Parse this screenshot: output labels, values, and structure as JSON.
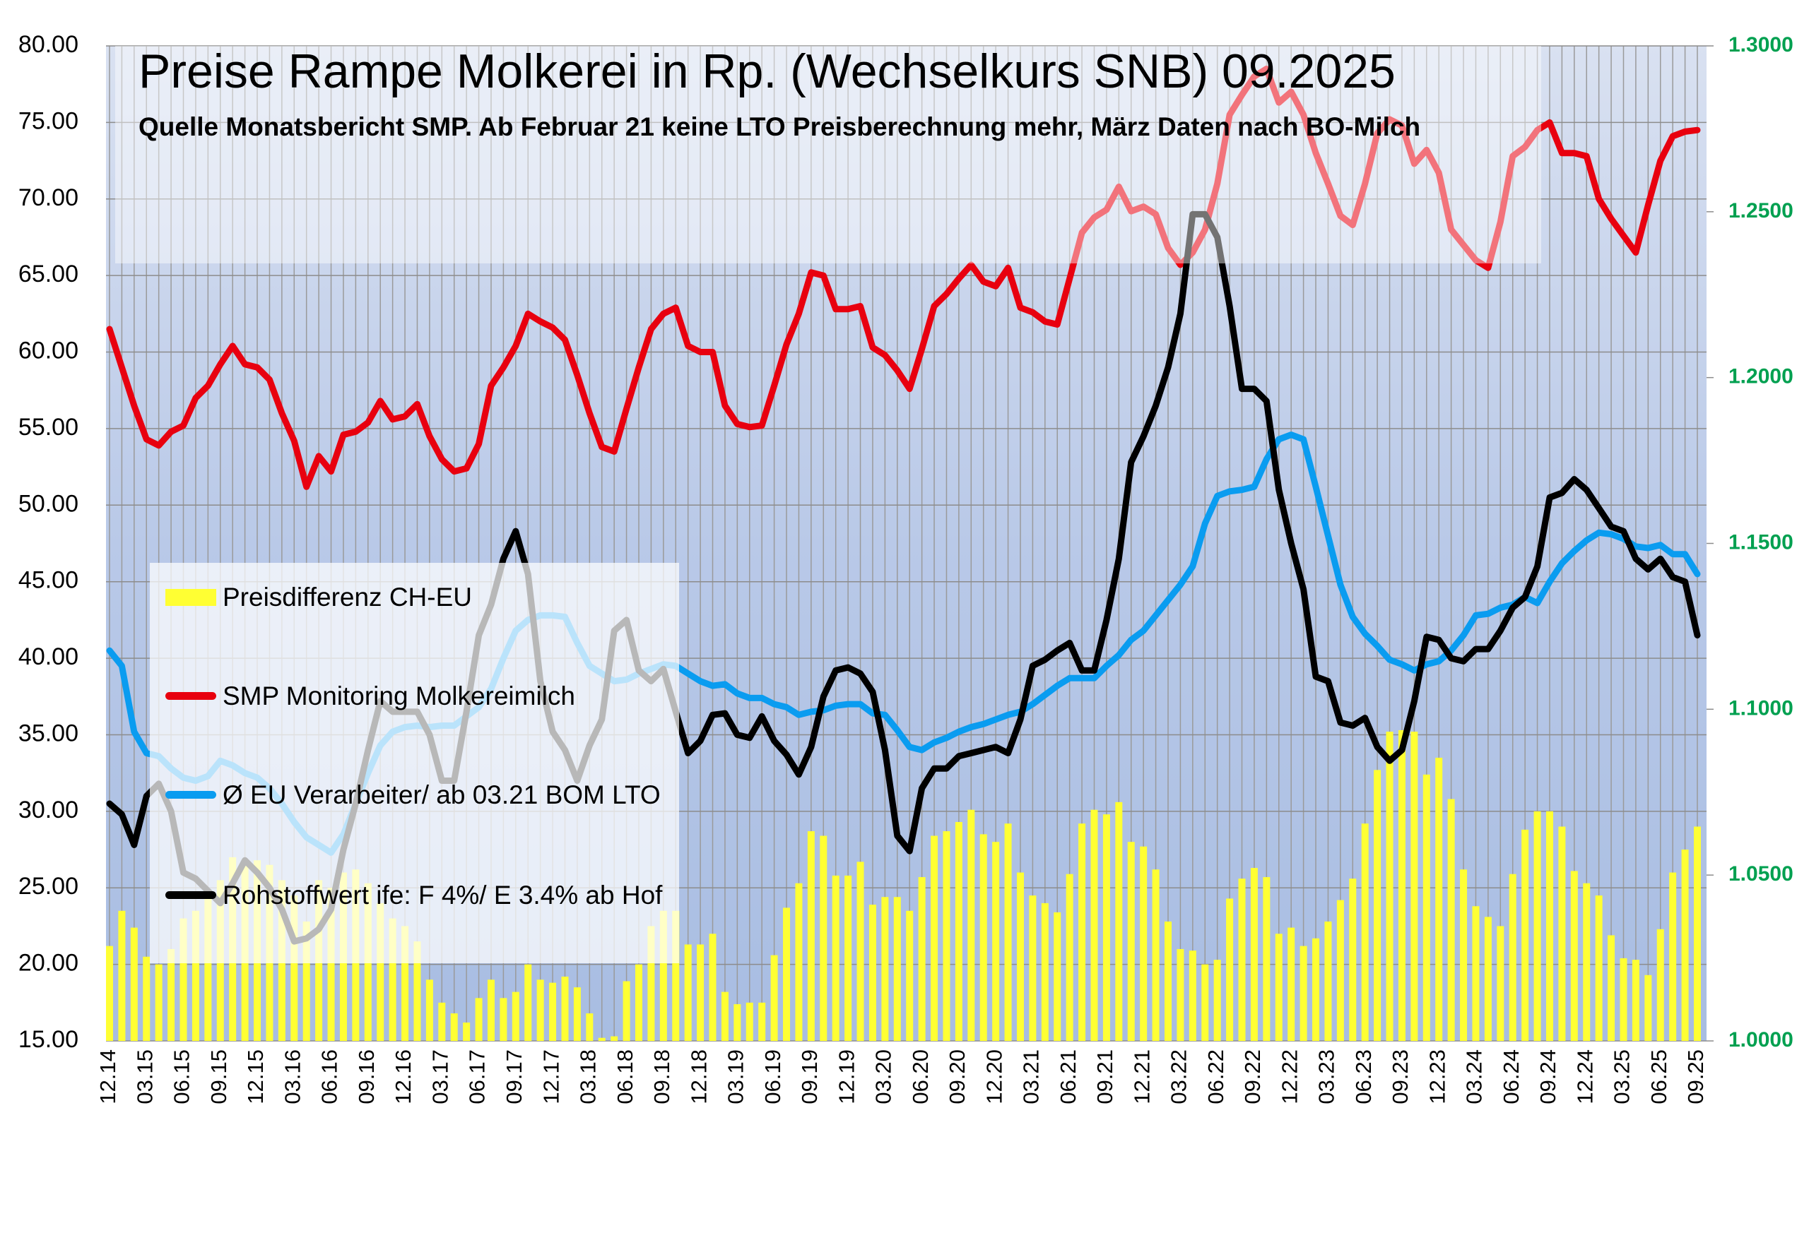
{
  "chart_data": {
    "type": "combo",
    "title": "Preise Rampe Molkerei in Rp. (Wechselkurs SNB) 09.2025",
    "subtitle": "Quelle Monatsbericht  SMP. Ab Februar 21 keine LTO Preisberechnung mehr, März Daten nach BO-Milch",
    "categories": [
      "12.14",
      null,
      null,
      "03.15",
      null,
      null,
      "06.15",
      null,
      null,
      "09.15",
      null,
      null,
      "12.15",
      null,
      null,
      "03.16",
      null,
      null,
      "06.16",
      null,
      null,
      "09.16",
      null,
      null,
      "12.16",
      null,
      null,
      "03.17",
      null,
      null,
      "06.17",
      null,
      null,
      "09.17",
      null,
      null,
      "12.17",
      null,
      null,
      "03.18",
      null,
      null,
      "06.18",
      null,
      null,
      "09.18",
      null,
      null,
      "12.18",
      null,
      null,
      "03.19",
      null,
      null,
      "06.19",
      null,
      null,
      "09.19",
      null,
      null,
      "12.19",
      null,
      null,
      "03.20",
      null,
      null,
      "06.20",
      null,
      null,
      "09.20",
      null,
      null,
      "12.20",
      null,
      null,
      "03.21",
      null,
      null,
      "06.21",
      null,
      null,
      "09.21",
      null,
      null,
      "12.21",
      null,
      null,
      "03.22",
      null,
      null,
      "06.22",
      null,
      null,
      "09.22",
      null,
      null,
      "12.22",
      null,
      null,
      "03.23",
      null,
      null,
      "06.23",
      null,
      null,
      "09.23",
      null,
      null,
      "12.23",
      null,
      null,
      "03.24",
      null,
      null,
      "06.24",
      null,
      null,
      "09.24",
      null,
      null,
      "12.24",
      null,
      null,
      "03.25",
      null,
      null,
      "06.25",
      null,
      null,
      "09.25"
    ],
    "series": [
      {
        "name": "Preisdifferenz CH-EU",
        "type": "bar",
        "color": "#ffff33",
        "values": [
          21.2,
          23.5,
          22.4,
          20.5,
          20,
          21,
          23,
          23.5,
          24.5,
          25.5,
          27,
          26.5,
          26.8,
          26.5,
          25.5,
          24.5,
          22.8,
          25.5,
          25,
          26,
          26.2,
          25.3,
          24,
          23,
          22.5,
          21.5,
          19,
          17.5,
          16.8,
          16.2,
          17.8,
          19,
          17.8,
          18.2,
          20,
          19,
          18.8,
          19.2,
          18.5,
          16.8,
          15.2,
          15.3,
          18.9,
          20,
          22.5,
          23.5,
          23.5,
          21.3,
          21.3,
          22,
          18.2,
          17.4,
          17.5,
          17.5,
          20.6,
          23.7,
          25.3,
          28.7,
          28.4,
          25.8,
          25.8,
          26.7,
          23.9,
          24.4,
          24.4,
          23.5,
          25.7,
          28.4,
          28.7,
          29.3,
          30.1,
          28.5,
          28,
          29.2,
          26,
          24.5,
          24,
          23.4,
          25.9,
          29.2,
          30.1,
          29.8,
          30.6,
          28,
          27.7,
          26.2,
          22.8,
          21,
          20.9,
          20,
          20.3,
          24.3,
          25.6,
          26.3,
          25.7,
          22,
          22.4,
          21.2,
          21.7,
          22.8,
          24.2,
          25.6,
          29.2,
          32.7,
          35.2,
          35.3,
          35.2,
          32.4,
          33.5,
          30.8,
          26.2,
          23.8,
          23.1,
          22.5,
          25.9,
          28.8,
          30,
          30,
          29,
          26.1,
          25.3,
          24.5,
          21.9,
          20.4,
          20.3,
          19.3,
          22.3,
          26,
          27.5,
          29
        ]
      },
      {
        "name": "SMP Monitoring Molkereimilch",
        "type": "line",
        "color": "#e8000f",
        "values": [
          61.5,
          59,
          56.5,
          54.3,
          53.9,
          54.8,
          55.2,
          57,
          57.8,
          59.2,
          60.4,
          59.2,
          59,
          58.2,
          56,
          54.2,
          51.2,
          53.2,
          52.2,
          54.6,
          54.8,
          55.4,
          56.8,
          55.6,
          55.8,
          56.6,
          54.5,
          53,
          52.2,
          52.4,
          54,
          57.8,
          59,
          60.4,
          62.5,
          62,
          61.6,
          60.8,
          58.5,
          56,
          53.8,
          53.5,
          56.3,
          59,
          61.5,
          62.5,
          62.9,
          60.4,
          60,
          60,
          56.5,
          55.3,
          55.1,
          55.2,
          57.8,
          60.5,
          62.5,
          65.2,
          65,
          62.8,
          62.8,
          63,
          60.3,
          59.8,
          58.8,
          57.6,
          60.2,
          63,
          63.8,
          64.8,
          65.7,
          64.6,
          64.3,
          65.5,
          62.9,
          62.6,
          62,
          61.8,
          64.8,
          67.8,
          68.8,
          69.3,
          70.8,
          69.2,
          69.5,
          69,
          66.8,
          65.7,
          66.5,
          68,
          71,
          75.5,
          76.8,
          78,
          78.5,
          76.3,
          77,
          75.5,
          73,
          71,
          68.9,
          68.3,
          71,
          74.3,
          75.2,
          74.8,
          72.3,
          73.2,
          71.7,
          68,
          67,
          66,
          65.5,
          68.5,
          72.8,
          73.4,
          74.5,
          75,
          73,
          73,
          72.8,
          70,
          68.7,
          67.6,
          66.5,
          69.6,
          72.5,
          74.1,
          74.4,
          74.5
        ]
      },
      {
        "name": "Ø EU Verarbeiter/ ab 03.21 BOM LTO",
        "type": "line",
        "color": "#0a9cf0",
        "values": [
          40.5,
          39.5,
          35.2,
          33.8,
          33.6,
          32.8,
          32.2,
          32,
          32.3,
          33.3,
          33,
          32.5,
          32.2,
          31.5,
          30.5,
          29.3,
          28.3,
          27.8,
          27.3,
          28.5,
          30.5,
          32.5,
          34.3,
          35.2,
          35.5,
          35.6,
          35.5,
          35.6,
          35.6,
          36.2,
          36.8,
          38,
          40,
          41.8,
          42.5,
          42.8,
          42.8,
          42.7,
          41,
          39.5,
          39,
          38.5,
          38.6,
          39,
          39.3,
          39.6,
          39.5,
          39,
          38.5,
          38.2,
          38.3,
          37.7,
          37.4,
          37.4,
          37,
          36.8,
          36.3,
          36.5,
          36.6,
          36.9,
          37,
          37,
          36.4,
          36.3,
          35.3,
          34.2,
          34,
          34.5,
          34.8,
          35.2,
          35.5,
          35.7,
          36,
          36.3,
          36.5,
          37,
          37.6,
          38.2,
          38.7,
          38.7,
          38.7,
          39.5,
          40.2,
          41.2,
          41.8,
          42.8,
          43.8,
          44.8,
          46,
          48.8,
          50.6,
          50.9,
          51,
          51.2,
          53,
          54.3,
          54.6,
          54.3,
          51.2,
          48,
          44.8,
          42.7,
          41.6,
          40.8,
          39.9,
          39.6,
          39.2,
          39.6,
          39.8,
          40.5,
          41.5,
          42.8,
          42.9,
          43.3,
          43.5,
          44,
          43.6,
          45,
          46.2,
          47,
          47.7,
          48.2,
          48.1,
          47.8,
          47.3,
          47.2,
          47.4,
          46.8,
          46.8,
          45.5
        ]
      },
      {
        "name": "Rohstoffwert ife: F 4%/ E 3.4% ab Hof",
        "type": "line",
        "color": "#000000",
        "values": [
          30.5,
          29.8,
          27.8,
          31,
          31.8,
          30,
          26,
          25.6,
          24.8,
          24,
          25.3,
          26.8,
          26,
          25,
          23.6,
          21.5,
          21.7,
          22.3,
          23.6,
          27.5,
          30.5,
          34,
          37.2,
          36.5,
          36.5,
          36.5,
          35,
          32,
          32,
          36.5,
          41.5,
          43.5,
          46.5,
          48.3,
          45.5,
          38.5,
          35.2,
          34,
          32,
          34.3,
          36,
          41.8,
          42.5,
          39.2,
          38.5,
          39.3,
          36.5,
          33.8,
          34.6,
          36.3,
          36.4,
          35,
          34.8,
          36.2,
          34.6,
          33.7,
          32.4,
          34.2,
          37.5,
          39.2,
          39.4,
          39,
          37.8,
          34,
          28.4,
          27.4,
          31.5,
          32.8,
          32.8,
          33.6,
          33.8,
          34,
          34.2,
          33.8,
          36,
          39.5,
          39.9,
          40.5,
          41,
          39.2,
          39.2,
          42.5,
          46.5,
          52.8,
          54.5,
          56.5,
          59,
          62.5,
          69,
          69,
          67.5,
          63,
          57.6,
          57.6,
          56.8,
          51,
          47.5,
          44.5,
          38.8,
          38.5,
          35.8,
          35.6,
          36.1,
          34.2,
          33.3,
          34,
          37.2,
          41.4,
          41.2,
          40,
          39.8,
          40.6,
          40.6,
          41.8,
          43.3,
          44,
          46,
          50.5,
          50.8,
          51.7,
          51,
          49.8,
          48.6,
          48.3,
          46.5,
          45.8,
          46.5,
          45.3,
          45,
          41.5
        ]
      }
    ],
    "ylim": [
      15,
      80
    ],
    "yticks": [
      {
        "value": 15,
        "label": "15.00"
      },
      {
        "value": 20,
        "label": "20.00"
      },
      {
        "value": 25,
        "label": "25.00"
      },
      {
        "value": 30,
        "label": "30.00"
      },
      {
        "value": 35,
        "label": "35.00"
      },
      {
        "value": 40,
        "label": "40.00"
      },
      {
        "value": 45,
        "label": "45.00"
      },
      {
        "value": 50,
        "label": "50.00"
      },
      {
        "value": 55,
        "label": "55.00"
      },
      {
        "value": 60,
        "label": "60.00"
      },
      {
        "value": 65,
        "label": "65.00"
      },
      {
        "value": 70,
        "label": "70.00"
      },
      {
        "value": 75,
        "label": "75.00"
      },
      {
        "value": 80,
        "label": "80.00"
      }
    ],
    "y2lim": [
      1,
      1.3
    ],
    "y2ticks": [
      {
        "value": 1,
        "label": "1.0000"
      },
      {
        "value": 1.05,
        "label": "1.0500"
      },
      {
        "value": 1.1,
        "label": "1.1000"
      },
      {
        "value": 1.15,
        "label": "1.1500"
      },
      {
        "value": 1.2,
        "label": "1.2000"
      },
      {
        "value": 1.25,
        "label": "1.2500"
      },
      {
        "value": 1.3,
        "label": "1.3000"
      }
    ],
    "y2color": "#00a050",
    "grid": true
  }
}
